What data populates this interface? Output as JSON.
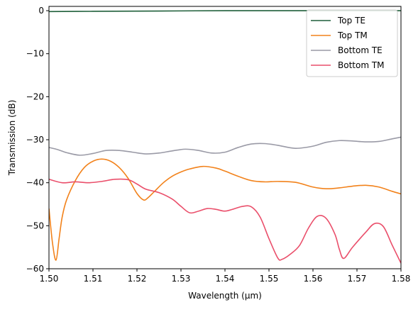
{
  "chart_data": {
    "type": "line",
    "xlabel": "Wavelength (μm)",
    "ylabel": "Transmission (dB)",
    "xlim": [
      1.5,
      1.58
    ],
    "ylim": [
      -60,
      1
    ],
    "x_ticks": [
      1.5,
      1.51,
      1.52,
      1.53,
      1.54,
      1.55,
      1.56,
      1.57,
      1.58
    ],
    "x_tick_labels": [
      "1.50",
      "1.51",
      "1.52",
      "1.53",
      "1.54",
      "1.55",
      "1.56",
      "1.57",
      "1.58"
    ],
    "y_ticks": [
      0,
      -10,
      -20,
      -30,
      -40,
      -50,
      -60
    ],
    "y_tick_labels": [
      "0",
      "−10",
      "−20",
      "−30",
      "−40",
      "−50",
      "−60"
    ],
    "grid": false,
    "legend_position": "top-right",
    "series": [
      {
        "name": "Top TE",
        "color": "#1f5f3a",
        "x": [
          1.5,
          1.51,
          1.52,
          1.53,
          1.54,
          1.55,
          1.56,
          1.57,
          1.58
        ],
        "y": [
          -0.2,
          -0.15,
          -0.1,
          -0.05,
          0.0,
          0.0,
          0.0,
          0.0,
          0.0
        ]
      },
      {
        "name": "Top TM",
        "color": "#f2821b",
        "x": [
          1.5,
          1.5008,
          1.5016,
          1.5023,
          1.503,
          1.504,
          1.506,
          1.508,
          1.51,
          1.512,
          1.514,
          1.516,
          1.518,
          1.52,
          1.5215,
          1.5225,
          1.524,
          1.526,
          1.528,
          1.53,
          1.532,
          1.535,
          1.538,
          1.54,
          1.543,
          1.546,
          1.549,
          1.552,
          1.556,
          1.56,
          1.563,
          1.566,
          1.569,
          1.572,
          1.575,
          1.578,
          1.58
        ],
        "y": [
          -46,
          -54,
          -58,
          -53,
          -48,
          -44,
          -39.5,
          -36.5,
          -35,
          -34.5,
          -35,
          -36.5,
          -39,
          -42.5,
          -44,
          -43.5,
          -42,
          -40,
          -38.5,
          -37.5,
          -36.8,
          -36.2,
          -36.6,
          -37.3,
          -38.5,
          -39.5,
          -39.8,
          -39.7,
          -39.9,
          -41,
          -41.4,
          -41.2,
          -40.8,
          -40.6,
          -41,
          -42,
          -42.6
        ]
      },
      {
        "name": "Bottom TE",
        "color": "#9a9aa6",
        "x": [
          1.5,
          1.502,
          1.504,
          1.507,
          1.51,
          1.513,
          1.516,
          1.519,
          1.522,
          1.525,
          1.528,
          1.531,
          1.534,
          1.537,
          1.54,
          1.543,
          1.546,
          1.549,
          1.552,
          1.556,
          1.56,
          1.563,
          1.566,
          1.569,
          1.572,
          1.575,
          1.578,
          1.58
        ],
        "y": [
          -31.8,
          -32.3,
          -33,
          -33.6,
          -33.2,
          -32.5,
          -32.5,
          -32.9,
          -33.3,
          -33.1,
          -32.6,
          -32.2,
          -32.5,
          -33.1,
          -32.9,
          -31.8,
          -31,
          -30.9,
          -31.3,
          -32,
          -31.5,
          -30.6,
          -30.2,
          -30.3,
          -30.5,
          -30.4,
          -29.8,
          -29.4
        ]
      },
      {
        "name": "Bottom TM",
        "color": "#ea4f6b",
        "x": [
          1.5,
          1.503,
          1.506,
          1.509,
          1.512,
          1.515,
          1.518,
          1.52,
          1.522,
          1.525,
          1.528,
          1.53,
          1.532,
          1.534,
          1.536,
          1.538,
          1.54,
          1.542,
          1.544,
          1.546,
          1.548,
          1.55,
          1.552,
          1.553,
          1.555,
          1.557,
          1.559,
          1.561,
          1.563,
          1.565,
          1.566,
          1.567,
          1.569,
          1.572,
          1.574,
          1.576,
          1.578,
          1.58
        ],
        "y": [
          -39.2,
          -40,
          -39.8,
          -40,
          -39.7,
          -39.2,
          -39.3,
          -40.3,
          -41.5,
          -42.3,
          -43.8,
          -45.5,
          -47,
          -46.6,
          -46,
          -46.2,
          -46.6,
          -46.1,
          -45.5,
          -45.6,
          -48,
          -53,
          -57.5,
          -57.8,
          -56.5,
          -54.5,
          -50.5,
          -47.8,
          -48.3,
          -52,
          -55.5,
          -57.6,
          -55,
          -51.5,
          -49.5,
          -50.2,
          -54.5,
          -58.7
        ]
      }
    ]
  }
}
